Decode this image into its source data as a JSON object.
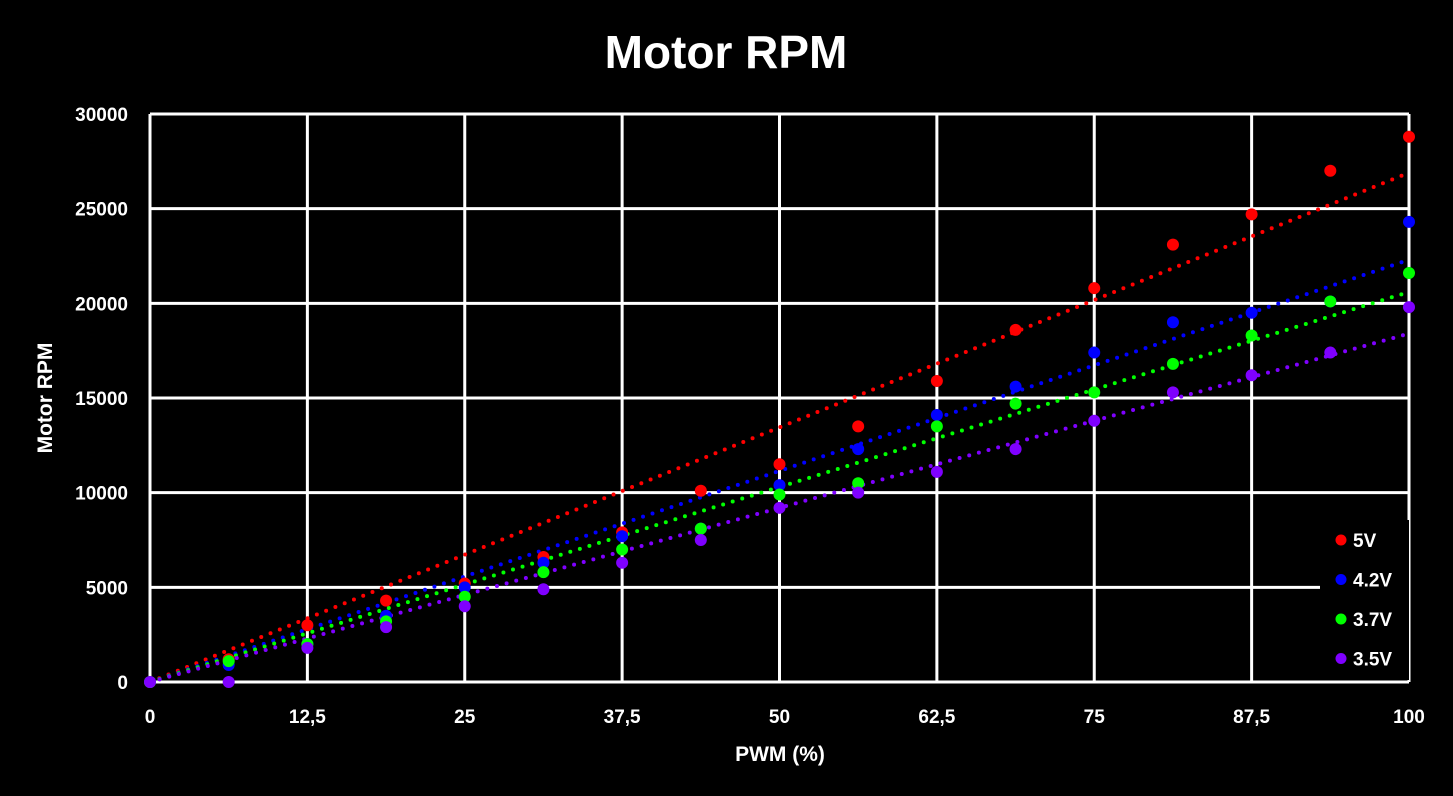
{
  "chart_data": {
    "type": "scatter",
    "title": "Motor RPM",
    "xlabel": "PWM (%)",
    "ylabel": "Motor RPM",
    "xlim": [
      0,
      100
    ],
    "ylim": [
      0,
      30000
    ],
    "x_ticks": [
      0,
      12.5,
      25,
      37.5,
      50,
      62.5,
      75,
      87.5,
      100
    ],
    "x_tick_labels": [
      "0",
      "12,5",
      "25",
      "37,5",
      "50",
      "62,5",
      "75",
      "87,5",
      "100"
    ],
    "y_ticks": [
      0,
      5000,
      10000,
      15000,
      20000,
      25000,
      30000
    ],
    "y_tick_labels": [
      "0",
      "5000",
      "10000",
      "15000",
      "20000",
      "25000",
      "30000"
    ],
    "grid": true,
    "background": "#000000",
    "grid_color": "#ffffff",
    "legend_position": "bottom-right",
    "trendlines": "linear, dotted",
    "series": [
      {
        "name": "5V",
        "color": "#ff0000",
        "x": [
          0,
          6.25,
          12.5,
          18.75,
          25,
          31.25,
          37.5,
          43.75,
          50,
          56.25,
          62.5,
          68.75,
          75,
          81.25,
          87.5,
          93.75,
          100
        ],
        "y": [
          0,
          1200,
          3000,
          4300,
          5200,
          6600,
          7900,
          10100,
          11500,
          13500,
          15900,
          18600,
          20800,
          23100,
          24700,
          27000,
          28800
        ],
        "trend_end": 26900
      },
      {
        "name": "4.2V",
        "color": "#0000ff",
        "x": [
          0,
          6.25,
          12.5,
          18.75,
          25,
          31.25,
          37.5,
          43.75,
          50,
          56.25,
          62.5,
          68.75,
          75,
          81.25,
          87.5,
          93.75,
          100
        ],
        "y": [
          0,
          900,
          2000,
          3500,
          5000,
          6300,
          7700,
          8100,
          10400,
          12300,
          14100,
          15600,
          17400,
          19000,
          19500,
          20100,
          24300
        ],
        "trend_end": 22300
      },
      {
        "name": "3.7V",
        "color": "#00ff00",
        "x": [
          0,
          6.25,
          12.5,
          18.75,
          25,
          31.25,
          37.5,
          43.75,
          50,
          56.25,
          62.5,
          68.75,
          75,
          81.25,
          87.5,
          93.75,
          100
        ],
        "y": [
          0,
          1100,
          2000,
          3200,
          4500,
          5800,
          7000,
          8100,
          9900,
          10500,
          13500,
          14700,
          15300,
          16800,
          18300,
          20100,
          21600
        ],
        "trend_end": 20600
      },
      {
        "name": "3.5V",
        "color": "#7f00ff",
        "x": [
          0,
          6.25,
          12.5,
          18.75,
          25,
          31.25,
          37.5,
          43.75,
          50,
          56.25,
          62.5,
          68.75,
          75,
          81.25,
          87.5,
          93.75,
          100
        ],
        "y": [
          0,
          0,
          1800,
          2900,
          4000,
          4900,
          6300,
          7500,
          9200,
          10000,
          11100,
          12300,
          13800,
          15300,
          16200,
          17400,
          19800
        ],
        "trend_end": 18400
      }
    ]
  }
}
